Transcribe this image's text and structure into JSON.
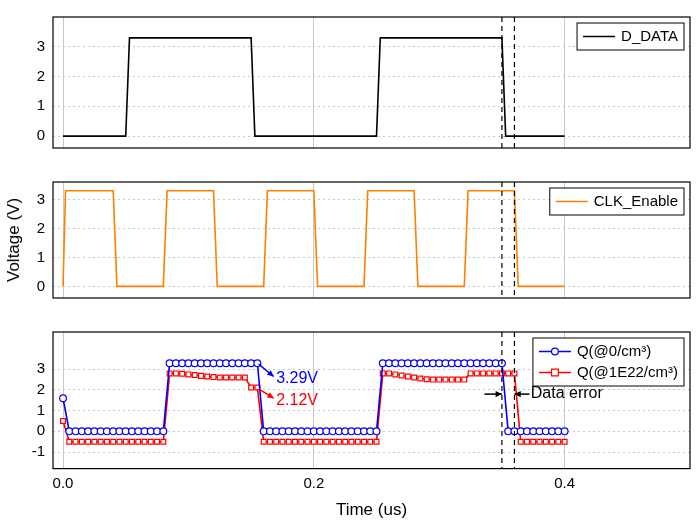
{
  "chart_data": [
    {
      "type": "line",
      "x": [
        0,
        0.05,
        0.053,
        0.15,
        0.153,
        0.25,
        0.253,
        0.35,
        0.353,
        0.4
      ],
      "series": [
        {
          "name": "D_DATA",
          "color": "#000000",
          "marker": "none",
          "values": [
            0,
            0,
            3.3,
            3.3,
            0,
            0,
            3.3,
            3.3,
            0,
            0
          ]
        }
      ],
      "xlim": [
        -0.008,
        0.5
      ],
      "xticks": [
        {
          "value": 0,
          "label": "0.0"
        },
        0.2,
        0.4
      ],
      "ylim": [
        -0.4,
        4
      ],
      "yticks": [
        0,
        1,
        2,
        3
      ],
      "grid": true,
      "legend": "upper right",
      "tick_labels": "y",
      "vlines": [
        0.35,
        0.36
      ]
    },
    {
      "type": "line",
      "x": [
        0,
        0.002,
        0.04,
        0.043,
        0.08,
        0.083,
        0.12,
        0.123,
        0.16,
        0.163,
        0.2,
        0.203,
        0.24,
        0.243,
        0.28,
        0.283,
        0.32,
        0.323,
        0.36,
        0.363,
        0.4
      ],
      "series": [
        {
          "name": "CLK_Enable",
          "color": "#ff8000",
          "marker": "none",
          "values": [
            0,
            3.3,
            3.3,
            0,
            0,
            3.3,
            3.3,
            0,
            0,
            3.3,
            3.3,
            0,
            0,
            3.3,
            3.3,
            0,
            0,
            3.3,
            3.3,
            0,
            0
          ]
        }
      ],
      "ylabel": "Voltage (V)",
      "xlim": [
        -0.008,
        0.5
      ],
      "xticks": [
        {
          "value": 0,
          "label": "0.0"
        },
        0.2,
        0.4
      ],
      "ylim": [
        -0.4,
        3.6
      ],
      "yticks": [
        0,
        1,
        2,
        3
      ],
      "grid": true,
      "legend": "upper right",
      "tick_labels": "y",
      "vlines": [
        0.35,
        0.36
      ]
    },
    {
      "type": "line",
      "x": [
        0,
        0.005,
        0.01,
        0.015,
        0.02,
        0.025,
        0.03,
        0.035,
        0.04,
        0.045,
        0.05,
        0.055,
        0.06,
        0.065,
        0.07,
        0.075,
        0.08,
        0.085,
        0.09,
        0.095,
        0.1,
        0.105,
        0.11,
        0.115,
        0.12,
        0.125,
        0.13,
        0.135,
        0.14,
        0.145,
        0.15,
        0.155,
        0.16,
        0.165,
        0.17,
        0.175,
        0.18,
        0.185,
        0.19,
        0.195,
        0.2,
        0.205,
        0.21,
        0.215,
        0.22,
        0.225,
        0.23,
        0.235,
        0.24,
        0.245,
        0.25,
        0.255,
        0.26,
        0.265,
        0.27,
        0.275,
        0.28,
        0.285,
        0.29,
        0.295,
        0.3,
        0.305,
        0.31,
        0.315,
        0.32,
        0.325,
        0.33,
        0.335,
        0.34,
        0.345,
        0.35,
        0.355,
        0.36,
        0.365,
        0.37,
        0.375,
        0.38,
        0.385,
        0.39,
        0.395,
        0.4
      ],
      "series": [
        {
          "name": "Q(@0/cm³)",
          "color": "#0000ff",
          "marker": "circle",
          "values": [
            1.6,
            0,
            0,
            0,
            0,
            0,
            0,
            0,
            0,
            0,
            0,
            0,
            0,
            0,
            0,
            0,
            0,
            3.29,
            3.29,
            3.29,
            3.29,
            3.29,
            3.29,
            3.29,
            3.29,
            3.29,
            3.29,
            3.29,
            3.29,
            3.29,
            3.29,
            3.29,
            0,
            0,
            0,
            0,
            0,
            0,
            0,
            0,
            0,
            0,
            0,
            0,
            0,
            0,
            0,
            0,
            0,
            0,
            0,
            3.29,
            3.29,
            3.29,
            3.29,
            3.29,
            3.29,
            3.29,
            3.29,
            3.29,
            3.29,
            3.29,
            3.29,
            3.29,
            3.29,
            3.29,
            3.29,
            3.29,
            3.29,
            3.29,
            3.29,
            0,
            0,
            0,
            0,
            0,
            0,
            0,
            0,
            0,
            0
          ]
        },
        {
          "name": "Q(@1E22/cm³)",
          "color": "#ff0000",
          "marker": "square",
          "values": [
            0.5,
            -0.5,
            -0.5,
            -0.5,
            -0.5,
            -0.5,
            -0.5,
            -0.5,
            -0.5,
            -0.5,
            -0.5,
            -0.5,
            -0.5,
            -0.5,
            -0.5,
            -0.5,
            -0.5,
            2.8,
            2.8,
            2.78,
            2.75,
            2.72,
            2.68,
            2.65,
            2.62,
            2.6,
            2.6,
            2.6,
            2.6,
            2.6,
            2.12,
            2.12,
            -0.5,
            -0.5,
            -0.5,
            -0.5,
            -0.5,
            -0.5,
            -0.5,
            -0.5,
            -0.5,
            -0.5,
            -0.5,
            -0.5,
            -0.5,
            -0.5,
            -0.5,
            -0.5,
            -0.5,
            -0.5,
            -0.5,
            2.8,
            2.8,
            2.75,
            2.7,
            2.65,
            2.6,
            2.55,
            2.52,
            2.5,
            2.5,
            2.5,
            2.5,
            2.5,
            2.5,
            2.8,
            2.8,
            2.8,
            2.8,
            2.8,
            2.8,
            2.8,
            2.8,
            -0.5,
            -0.5,
            -0.5,
            -0.5,
            -0.5,
            -0.5,
            -0.5,
            -0.5
          ]
        }
      ],
      "xlabel": "Time (us)",
      "xlim": [
        -0.008,
        0.5
      ],
      "xticks": [
        {
          "value": 0,
          "label": "0.0"
        },
        0.2,
        0.4
      ],
      "ylim": [
        -1.8,
        4.8
      ],
      "yticks": [
        -1,
        0,
        1,
        2,
        3
      ],
      "grid": true,
      "legend": "upper right",
      "vlines": [
        0.35,
        0.36
      ],
      "annotations": [
        {
          "text": "3.29V",
          "x": 0.17,
          "y": 2.55,
          "color": "#0000ff",
          "arrows": [
            {
              "from": [
                0.156,
                3.25
              ],
              "to": [
                0.168,
                2.65
              ]
            }
          ]
        },
        {
          "text": "2.12V",
          "x": 0.17,
          "y": 1.5,
          "color": "#ff0000",
          "arrows": [
            {
              "from": [
                0.156,
                2.05
              ],
              "to": [
                0.168,
                1.6
              ]
            }
          ]
        },
        {
          "text": "Data error",
          "x": 0.373,
          "y": 1.8,
          "color": "#000000",
          "arrows": [
            {
              "from": [
                0.336,
                1.8
              ],
              "to": [
                0.35,
                1.8
              ]
            },
            {
              "from": [
                0.372,
                1.8
              ],
              "to": [
                0.36,
                1.8
              ]
            }
          ]
        }
      ]
    }
  ]
}
